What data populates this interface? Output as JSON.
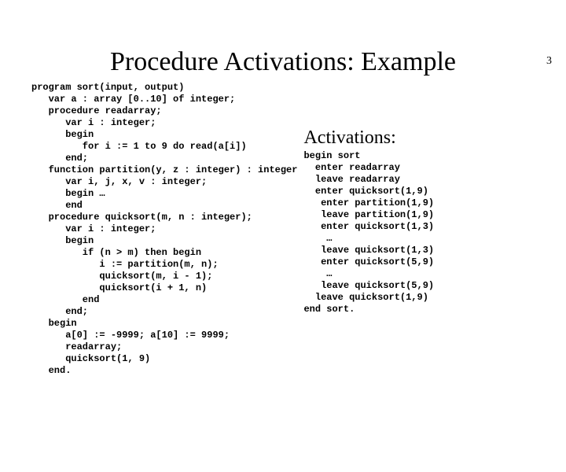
{
  "page_number": "3",
  "title": "Procedure Activations: Example",
  "code": "program sort(input, output)\n   var a : array [0..10] of integer;\n   procedure readarray;\n      var i : integer;\n      begin\n         for i := 1 to 9 do read(a[i])\n      end;\n   function partition(y, z : integer) : integer\n      var i, j, x, v : integer;\n      begin …\n      end\n   procedure quicksort(m, n : integer);\n      var i : integer;\n      begin\n         if (n > m) then begin\n            i := partition(m, n);\n            quicksort(m, i - 1);\n            quicksort(i + 1, n)\n         end\n      end;\n   begin\n      a[0] := -9999; a[10] := 9999;\n      readarray;\n      quicksort(1, 9)\n   end.",
  "activations_title": "Activations:",
  "activations": "begin sort\n  enter readarray\n  leave readarray\n  enter quicksort(1,9)\n   enter partition(1,9)\n   leave partition(1,9)\n   enter quicksort(1,3)\n    …\n   leave quicksort(1,3)\n   enter quicksort(5,9)\n    …\n   leave quicksort(5,9)\n  leave quicksort(1,9)\nend sort."
}
